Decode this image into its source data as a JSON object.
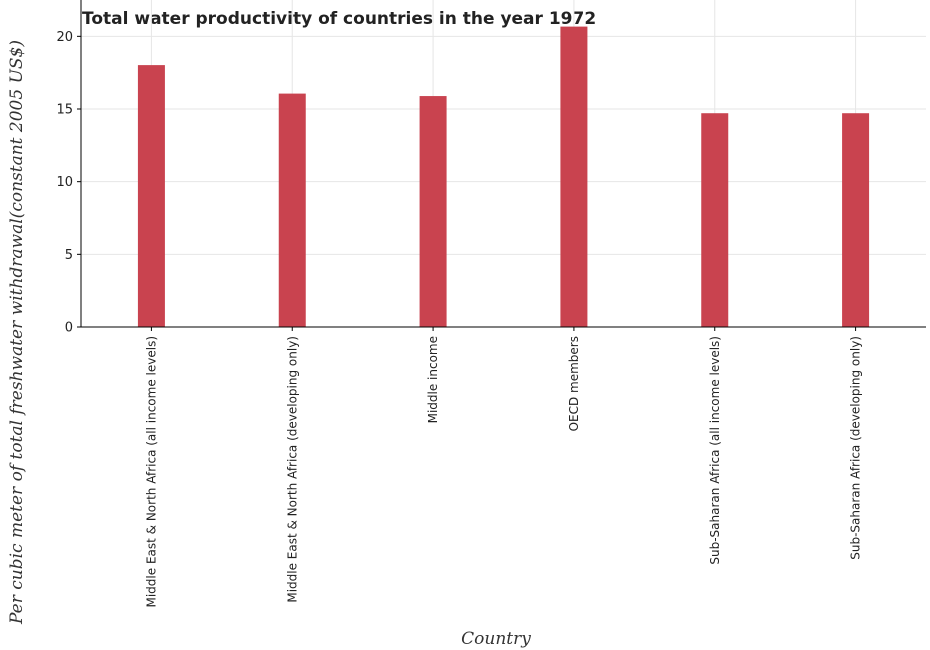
{
  "chart_data": {
    "type": "bar",
    "title": "Total water productivity of countries in the year 1972",
    "xlabel": "Country",
    "ylabel": "Per cubic meter of total freshwater withdrawal(constant 2005 US$)",
    "categories": [
      "Middle East & North Africa (all income levels)",
      "Middle East & North Africa (developing only)",
      "Middle income",
      "OECD members",
      "Sub-Saharan Africa (all income levels)",
      "Sub-Saharan Africa (developing only)"
    ],
    "values": [
      18.02,
      16.06,
      15.89,
      20.67,
      14.71,
      14.71
    ],
    "ylim": [
      0,
      22.5
    ],
    "yticks": [
      0,
      5,
      10,
      15,
      20
    ],
    "grid": true,
    "bar_color": "#c9434f"
  }
}
